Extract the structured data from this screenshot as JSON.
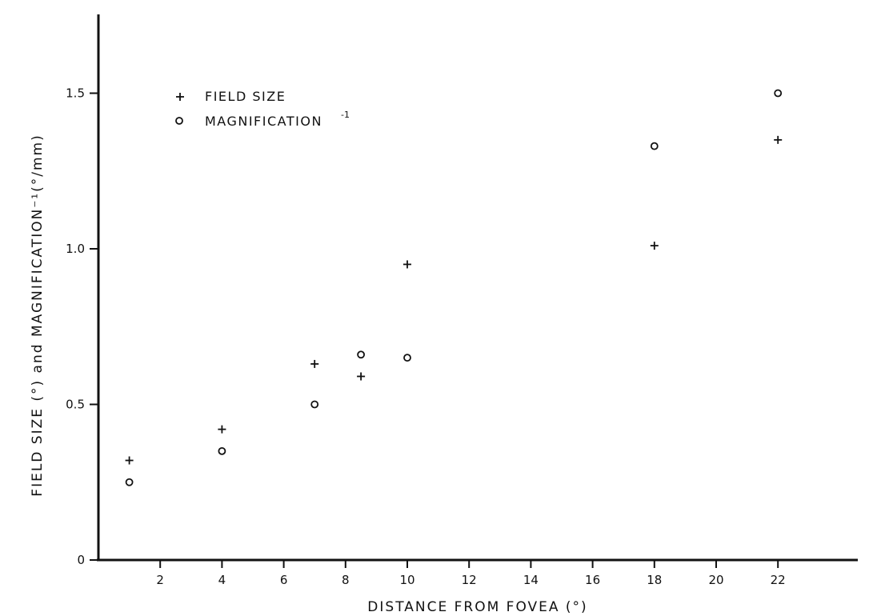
{
  "chart_data": {
    "type": "scatter",
    "title": "",
    "xlabel": "DISTANCE FROM FOVEA (°)",
    "ylabel": "FIELD SIZE (°) and MAGNIFICATION⁻¹(°/mm)",
    "xlim": [
      0,
      24.5
    ],
    "ylim": [
      0,
      1.7
    ],
    "xticks": [
      2,
      4,
      6,
      8,
      10,
      12,
      14,
      16,
      18,
      20,
      22
    ],
    "yticks": [
      0,
      0.5,
      1.0,
      1.5
    ],
    "ytick_labels": [
      "0",
      "0.5",
      "1.0",
      "1.5"
    ],
    "grid": false,
    "legend_position": "top-left",
    "series": [
      {
        "name": "FIELD SIZE",
        "marker": "plus",
        "x": [
          1,
          4,
          7,
          8.5,
          10,
          18,
          22
        ],
        "y": [
          0.32,
          0.42,
          0.63,
          0.59,
          0.95,
          1.01,
          1.35
        ]
      },
      {
        "name": "MAGNIFICATION",
        "name_superscript": "-1",
        "marker": "circle",
        "x": [
          1,
          4,
          7,
          8.5,
          10,
          18,
          22
        ],
        "y": [
          0.25,
          0.35,
          0.5,
          0.66,
          0.65,
          1.33,
          1.5
        ]
      }
    ],
    "colors": {
      "ink": "#111111",
      "background": "#ffffff"
    }
  }
}
